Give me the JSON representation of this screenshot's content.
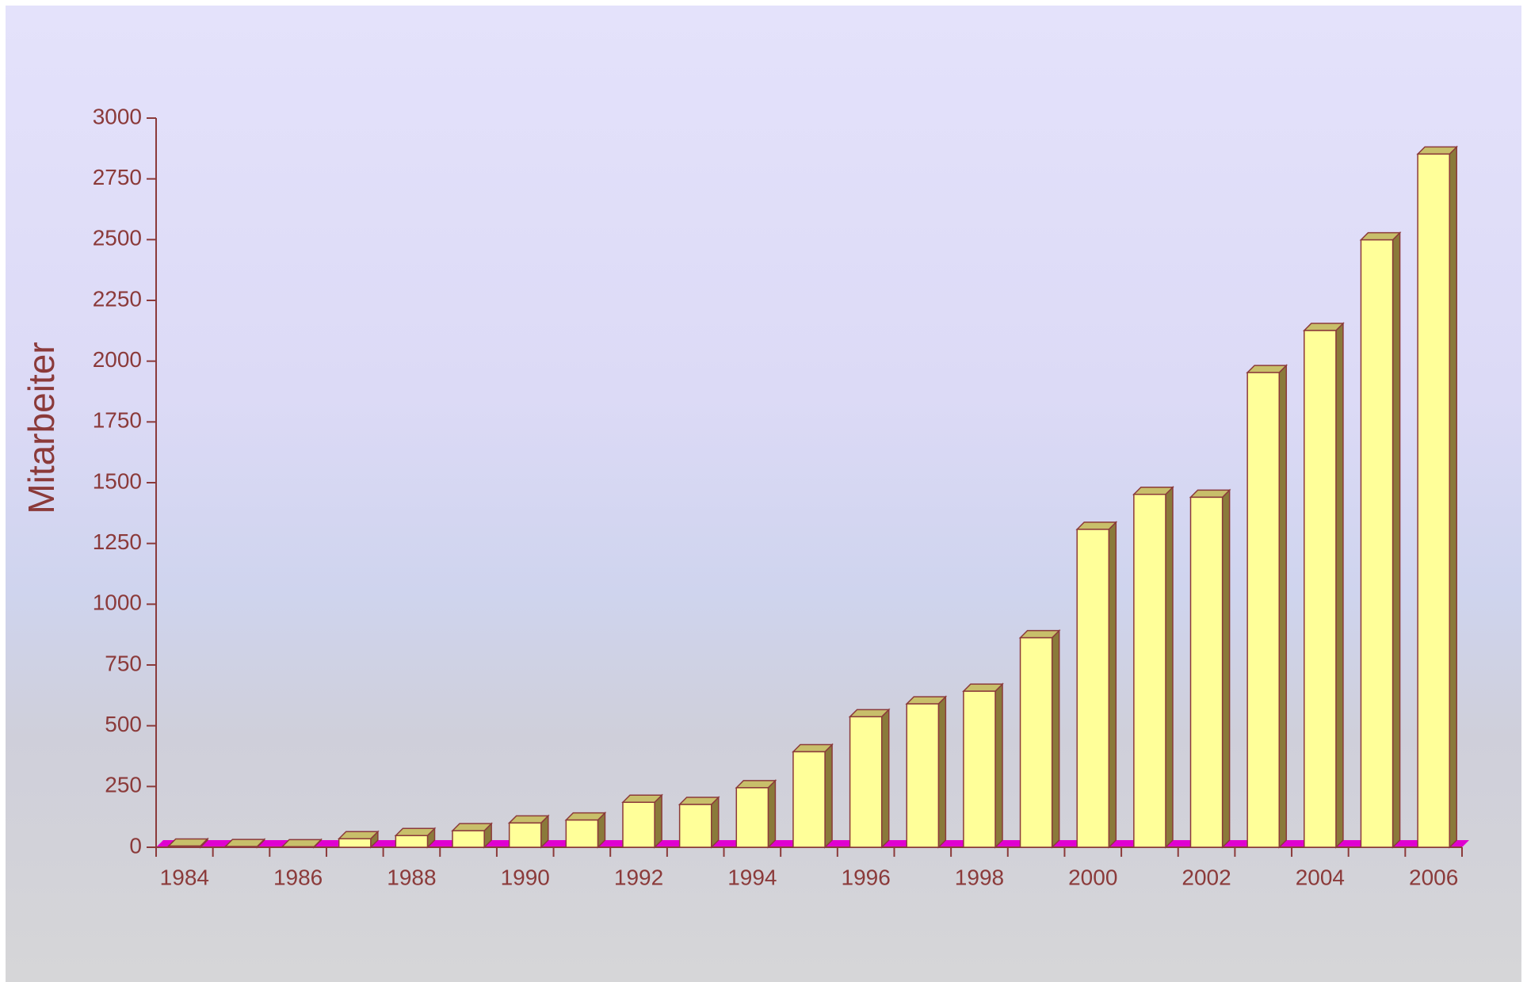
{
  "chart_data": {
    "type": "bar",
    "y_label": "Mitarbeiter",
    "categories": [
      "1984",
      null,
      "1986",
      null,
      "1988",
      null,
      "1990",
      null,
      "1992",
      null,
      "1994",
      null,
      "1996",
      null,
      "1998",
      null,
      "2000",
      null,
      "2002",
      null,
      "2004",
      null,
      "2006"
    ],
    "values": [
      5,
      3,
      2,
      35,
      48,
      68,
      100,
      112,
      185,
      176,
      245,
      393,
      537,
      590,
      642,
      862,
      1308,
      1452,
      1440,
      1953,
      2126,
      2499,
      2852
    ],
    "color": "#ffff99",
    "ylim": [
      0,
      3000
    ],
    "yticks": [
      0,
      250,
      500,
      750,
      1000,
      1250,
      1500,
      1750,
      2000,
      2250,
      2500,
      2750,
      3000
    ],
    "grid": false
  }
}
